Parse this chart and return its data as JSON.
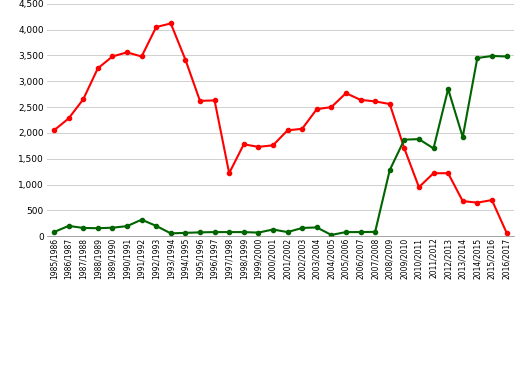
{
  "labels": [
    "1985/1986",
    "1986/1987",
    "1987/1988",
    "1988/1989",
    "1989/1990",
    "1990/1991",
    "1991/1992",
    "1992/1993",
    "1993/1994",
    "1994/1995",
    "1995/1996",
    "1996/1997",
    "1997/1998",
    "1998/1999",
    "1999/2000",
    "2000/2001",
    "2001/2002",
    "2002/2003",
    "2003/2004",
    "2004/2005",
    "2005/2006",
    "2006/2007",
    "2007/2008",
    "2008/2009",
    "2009/2010",
    "2010/2011",
    "2011/2012",
    "2012/2013",
    "2013/2014",
    "2014/2015",
    "2015/2016",
    "2016/2017"
  ],
  "production": [
    2050,
    2280,
    2650,
    3250,
    3480,
    3560,
    3480,
    4050,
    4120,
    3420,
    2620,
    2630,
    1220,
    1780,
    1730,
    1760,
    2050,
    2080,
    2460,
    2500,
    2770,
    2640,
    2610,
    2560,
    1700,
    950,
    1220,
    1220,
    680,
    650,
    700,
    70
  ],
  "imports": [
    80,
    200,
    160,
    155,
    165,
    195,
    320,
    200,
    55,
    65,
    75,
    80,
    80,
    80,
    70,
    130,
    80,
    160,
    170,
    25,
    80,
    80,
    85,
    1280,
    1870,
    1880,
    1700,
    2850,
    1920,
    3450,
    3490,
    3480
  ],
  "production_color": "#FF0000",
  "imports_color": "#006400",
  "ylim": [
    0,
    4500
  ],
  "yticks": [
    0,
    500,
    1000,
    1500,
    2000,
    2500,
    3000,
    3500,
    4000,
    4500
  ],
  "figsize": [
    5.19,
    3.81
  ],
  "dpi": 100
}
